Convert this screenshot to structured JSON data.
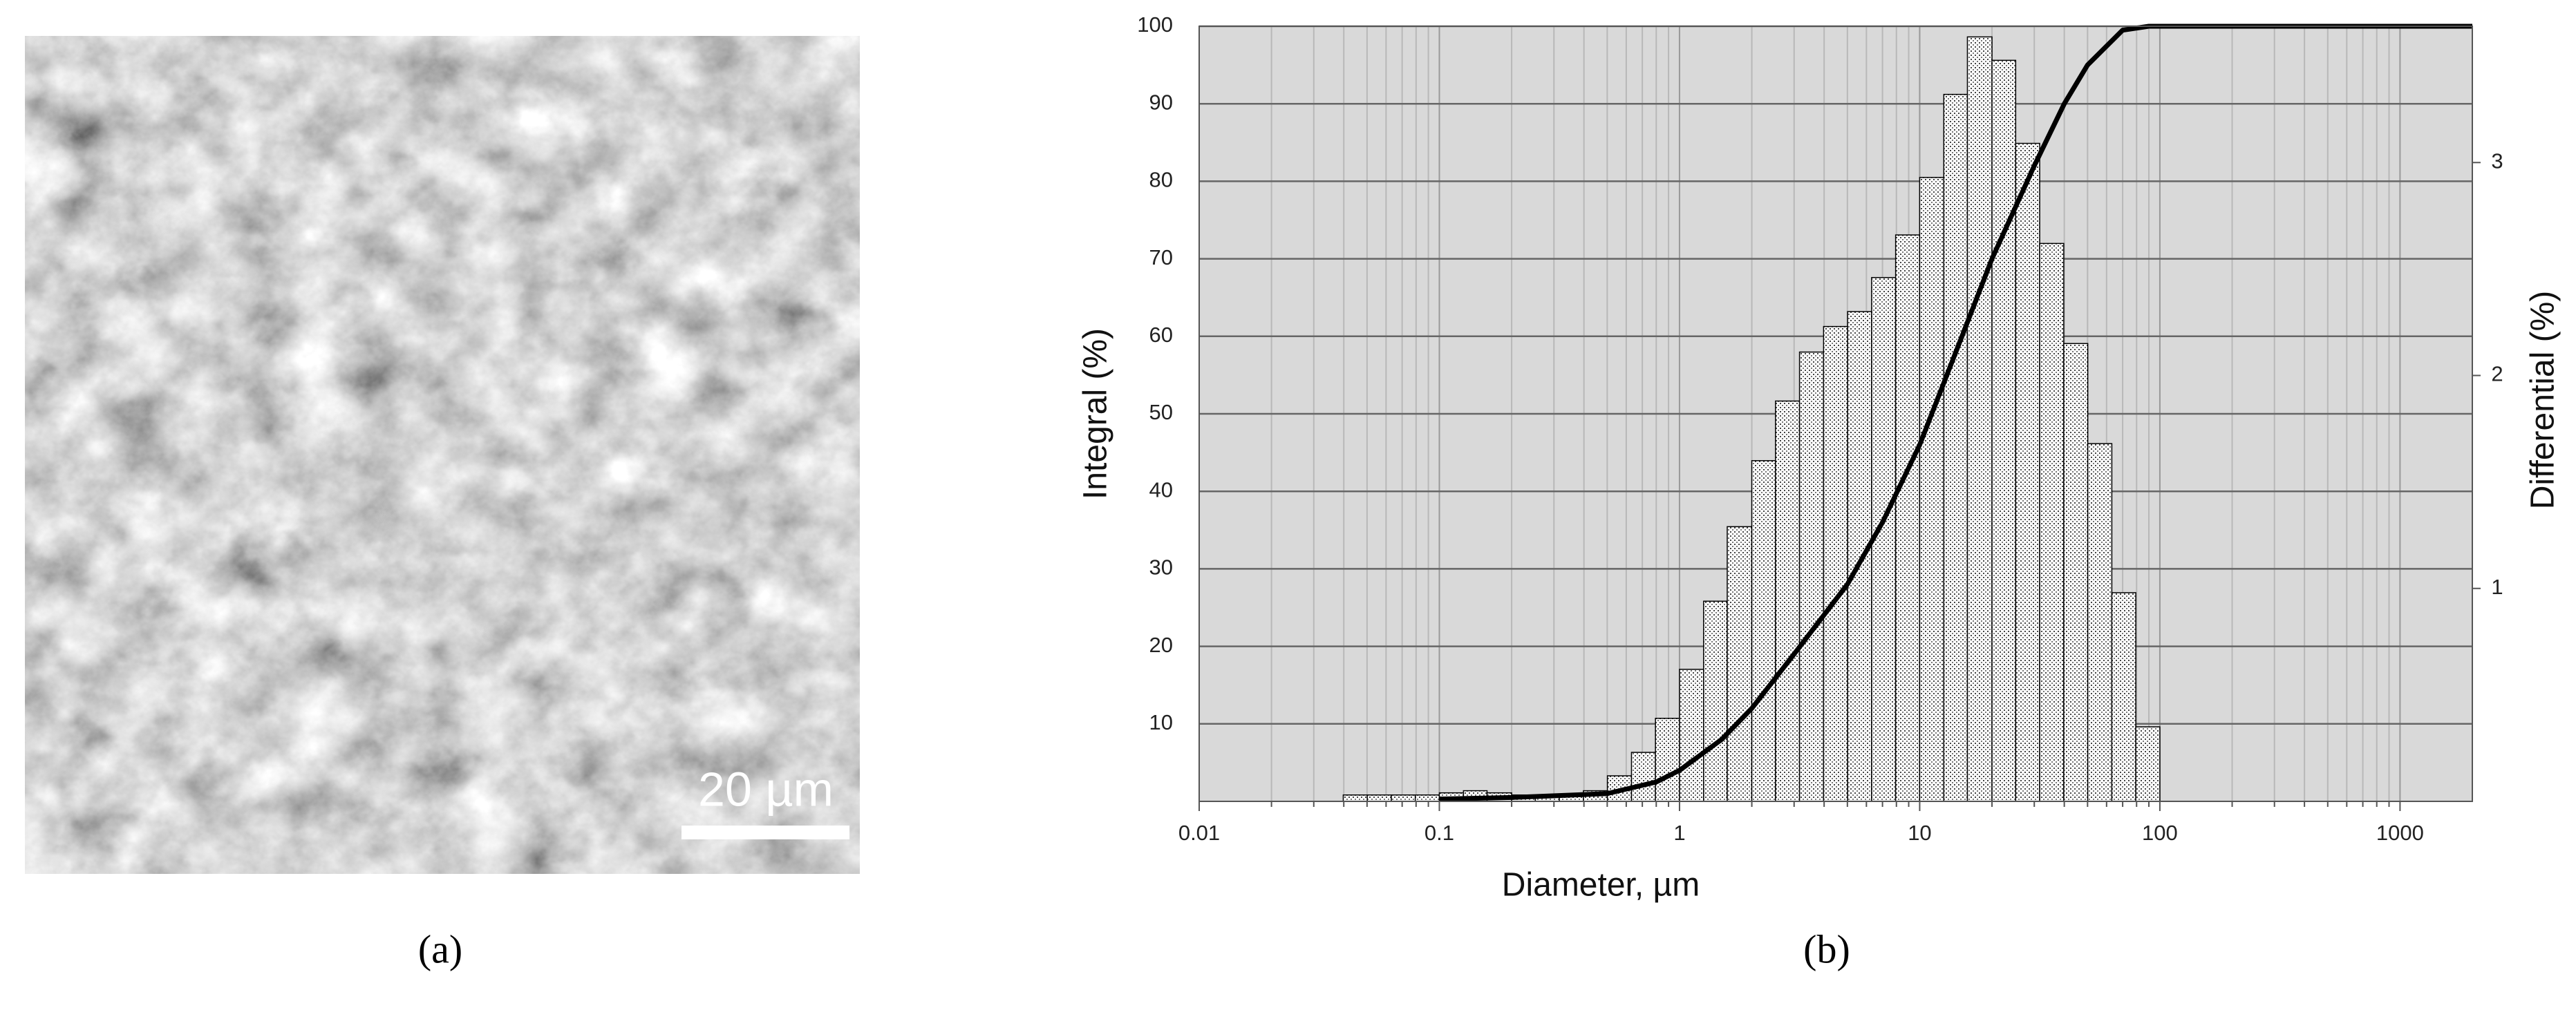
{
  "figure": {
    "panel_a": {
      "scale_bar_label": "20 µm",
      "caption": "(a)"
    },
    "panel_b": {
      "caption": "(b)"
    }
  },
  "chart_data": {
    "type": "histogram",
    "xlabel": "Diameter, µm",
    "ylabel": "Integral (%)",
    "y2label": "Differential (%)",
    "xscale": "log",
    "xlim": [
      0.01,
      2000
    ],
    "xticks": [
      0.01,
      0.1,
      1,
      10,
      100,
      1000
    ],
    "ylim": [
      0,
      100
    ],
    "yticks": [
      10,
      20,
      30,
      40,
      50,
      60,
      70,
      80,
      90,
      100
    ],
    "y2lim": [
      0,
      3.64
    ],
    "y2ticks": [
      1,
      2,
      3
    ],
    "grid": true,
    "minor_grid": true,
    "background": "#d9d9d9",
    "histogram": {
      "axis": "y2",
      "edge_color": "#000000",
      "bins": [
        0.0398,
        0.0501,
        0.0631,
        0.0794,
        0.1,
        0.126,
        0.158,
        0.2,
        0.251,
        0.316,
        0.398,
        0.501,
        0.631,
        0.794,
        1,
        1.26,
        1.58,
        2,
        2.51,
        3.16,
        3.98,
        5.01,
        6.31,
        7.94,
        10,
        12.6,
        15.8,
        20,
        25.1,
        31.6,
        39.8,
        50.1,
        63.1,
        79.4,
        100
      ],
      "values": [
        0.03,
        0.03,
        0.03,
        0.03,
        0.04,
        0.05,
        0.04,
        0.03,
        0.03,
        0.03,
        0.05,
        0.12,
        0.23,
        0.39,
        0.62,
        0.94,
        1.29,
        1.6,
        1.88,
        2.11,
        2.23,
        2.3,
        2.46,
        2.66,
        2.93,
        3.32,
        3.59,
        3.48,
        3.09,
        2.62,
        2.15,
        1.68,
        0.98,
        0.35
      ]
    },
    "line": {
      "axis": "y",
      "color": "#000000",
      "x": [
        0.1,
        0.2,
        0.5,
        0.8,
        1,
        1.5,
        2,
        3,
        5,
        7,
        10,
        15,
        20,
        30,
        40,
        50,
        70,
        90,
        2000
      ],
      "values": [
        0.3,
        0.5,
        1,
        2.5,
        4,
        8,
        12,
        19,
        28,
        36,
        46,
        60,
        70,
        82,
        90,
        95,
        99.5,
        100,
        100
      ]
    }
  }
}
